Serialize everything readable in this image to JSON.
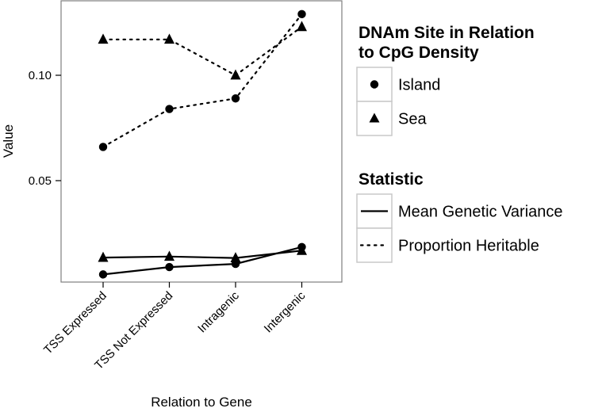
{
  "chart_data": {
    "type": "line",
    "title": "",
    "xlabel": "Relation to Gene",
    "ylabel": "Value",
    "categories": [
      "TSS Expressed",
      "TSS Not Expressed",
      "Intragenic",
      "Intergenic"
    ],
    "ylim": [
      0.0,
      0.13
    ],
    "yticks": [
      0.05,
      0.1
    ],
    "ytick_labels": [
      "0.05",
      "0.10"
    ],
    "grid": false,
    "series": [
      {
        "shape": "Island",
        "statistic": "Proportion Heritable",
        "values": [
          0.066,
          0.084,
          0.089,
          0.129
        ]
      },
      {
        "shape": "Sea",
        "statistic": "Proportion Heritable",
        "values": [
          0.117,
          0.117,
          0.1,
          0.123
        ]
      },
      {
        "shape": "Island",
        "statistic": "Mean Genetic Variance",
        "values": [
          0.0055,
          0.009,
          0.0105,
          0.0185
        ]
      },
      {
        "shape": "Sea",
        "statistic": "Mean Genetic Variance",
        "values": [
          0.0135,
          0.014,
          0.0133,
          0.0168
        ]
      }
    ],
    "legends": [
      {
        "title_lines": [
          "DNAm Site in Relation",
          "to CpG Density"
        ],
        "items": [
          {
            "label": "Island",
            "marker": "circle"
          },
          {
            "label": "Sea",
            "marker": "triangle"
          }
        ]
      },
      {
        "title_lines": [
          "Statistic"
        ],
        "items": [
          {
            "label": "Mean Genetic Variance",
            "line": "solid"
          },
          {
            "label": "Proportion Heritable",
            "line": "dotted"
          }
        ]
      }
    ],
    "legend_placement": "right"
  }
}
